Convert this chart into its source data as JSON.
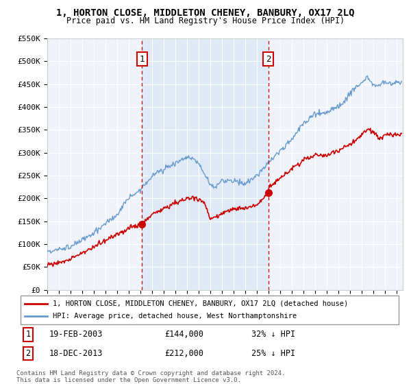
{
  "title": "1, HORTON CLOSE, MIDDLETON CHENEY, BANBURY, OX17 2LQ",
  "subtitle": "Price paid vs. HM Land Registry's House Price Index (HPI)",
  "legend_line1": "1, HORTON CLOSE, MIDDLETON CHENEY, BANBURY, OX17 2LQ (detached house)",
  "legend_line2": "HPI: Average price, detached house, West Northamptonshire",
  "footnote": "Contains HM Land Registry data © Crown copyright and database right 2024.\nThis data is licensed under the Open Government Licence v3.0.",
  "sale1_label": "1",
  "sale1_date": "19-FEB-2003",
  "sale1_price": "£144,000",
  "sale1_hpi": "32% ↓ HPI",
  "sale1_year": 2003.13,
  "sale1_value": 144000,
  "sale2_label": "2",
  "sale2_date": "18-DEC-2013",
  "sale2_price": "£212,000",
  "sale2_hpi": "25% ↓ HPI",
  "sale2_year": 2013.96,
  "sale2_value": 212000,
  "ylim": [
    0,
    550000
  ],
  "yticks": [
    0,
    50000,
    100000,
    150000,
    200000,
    250000,
    300000,
    350000,
    400000,
    450000,
    500000,
    550000
  ],
  "ytick_labels": [
    "£0",
    "£50K",
    "£100K",
    "£150K",
    "£200K",
    "£250K",
    "£300K",
    "£350K",
    "£400K",
    "£450K",
    "£500K",
    "£550K"
  ],
  "xlim_start": 1995.0,
  "xlim_end": 2025.5,
  "red_line_color": "#cc0000",
  "blue_line_color": "#6699cc",
  "bg_color": "#dce8f5",
  "grid_color": "#ffffff",
  "marker_box_color": "#cc0000",
  "shade_color": "#dce8f5"
}
